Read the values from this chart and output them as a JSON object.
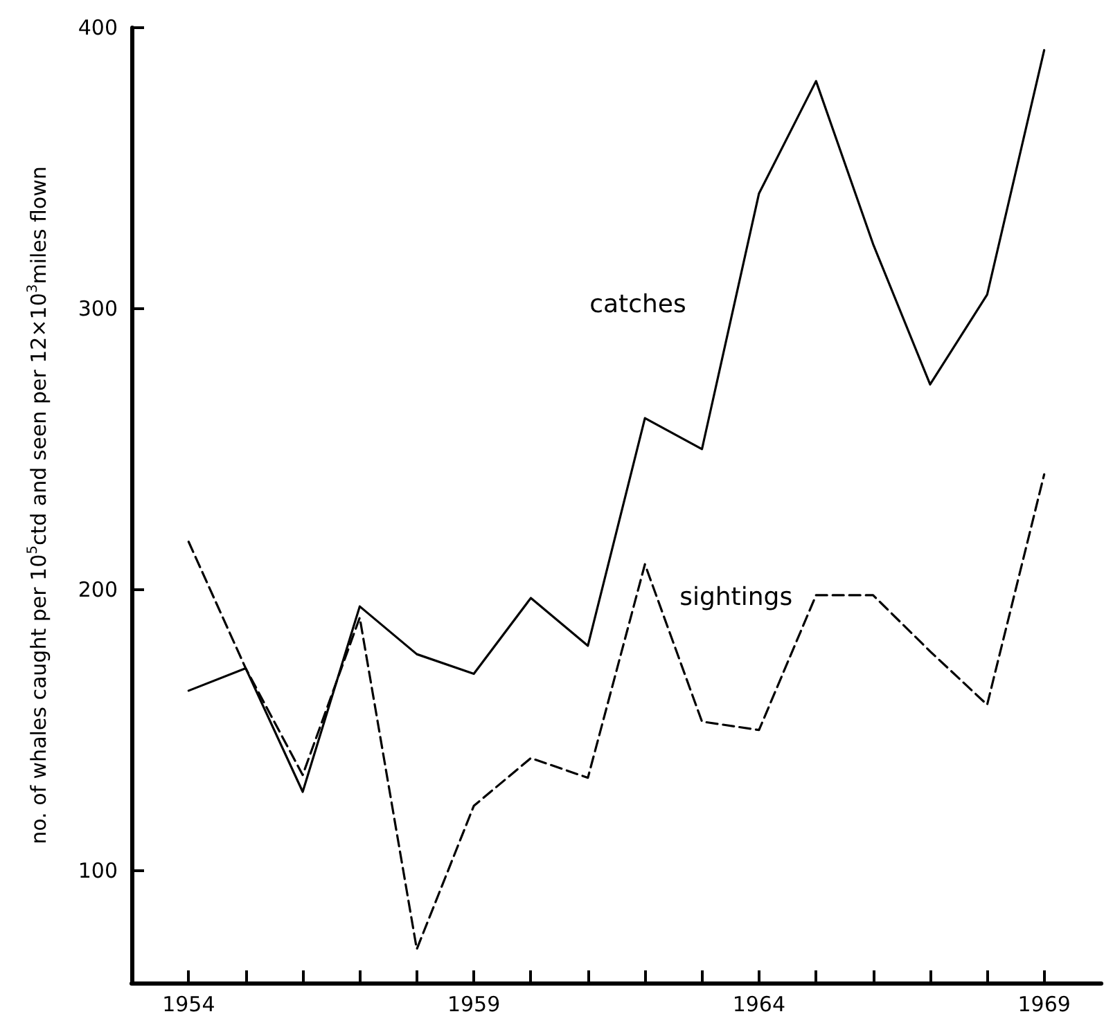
{
  "chart_data": {
    "type": "line",
    "ylabel": "no. of whales caught per 10$^{5}$ctd and seen per 12×10$^{3}$miles flown",
    "x": [
      1954,
      1955,
      1956,
      1957,
      1958,
      1959,
      1960,
      1961,
      1962,
      1963,
      1964,
      1965,
      1966,
      1967,
      1968,
      1969
    ],
    "series": [
      {
        "name": "catches",
        "color": "#000000",
        "line_style": "solid",
        "values": [
          164,
          172,
          128,
          194,
          177,
          170,
          197,
          180,
          261,
          250,
          341,
          381,
          323,
          273,
          305,
          392
        ]
      },
      {
        "name": "sightings",
        "color": "#000000",
        "line_style": "dashed",
        "values": [
          217,
          172,
          134,
          190,
          72,
          123,
          140,
          133,
          209,
          153,
          150,
          198,
          198,
          178,
          159,
          241
        ]
      }
    ],
    "xlim": [
      1953,
      1970
    ],
    "ylim": [
      60,
      400
    ],
    "xticks": [
      1954,
      {
        "value": 1955,
        "label": null
      },
      {
        "value": 1956,
        "label": null
      },
      {
        "value": 1957,
        "label": null
      },
      {
        "value": 1958,
        "label": null
      },
      1959,
      {
        "value": 1960,
        "label": null
      },
      {
        "value": 1961,
        "label": null
      },
      {
        "value": 1962,
        "label": null
      },
      {
        "value": 1963,
        "label": null
      },
      1964,
      {
        "value": 1965,
        "label": null
      },
      {
        "value": 1966,
        "label": null
      },
      {
        "value": 1967,
        "label": null
      },
      {
        "value": 1968,
        "label": null
      },
      1969
    ],
    "yticks": [
      100,
      200,
      300,
      400
    ],
    "grid": false,
    "marker": "none"
  }
}
